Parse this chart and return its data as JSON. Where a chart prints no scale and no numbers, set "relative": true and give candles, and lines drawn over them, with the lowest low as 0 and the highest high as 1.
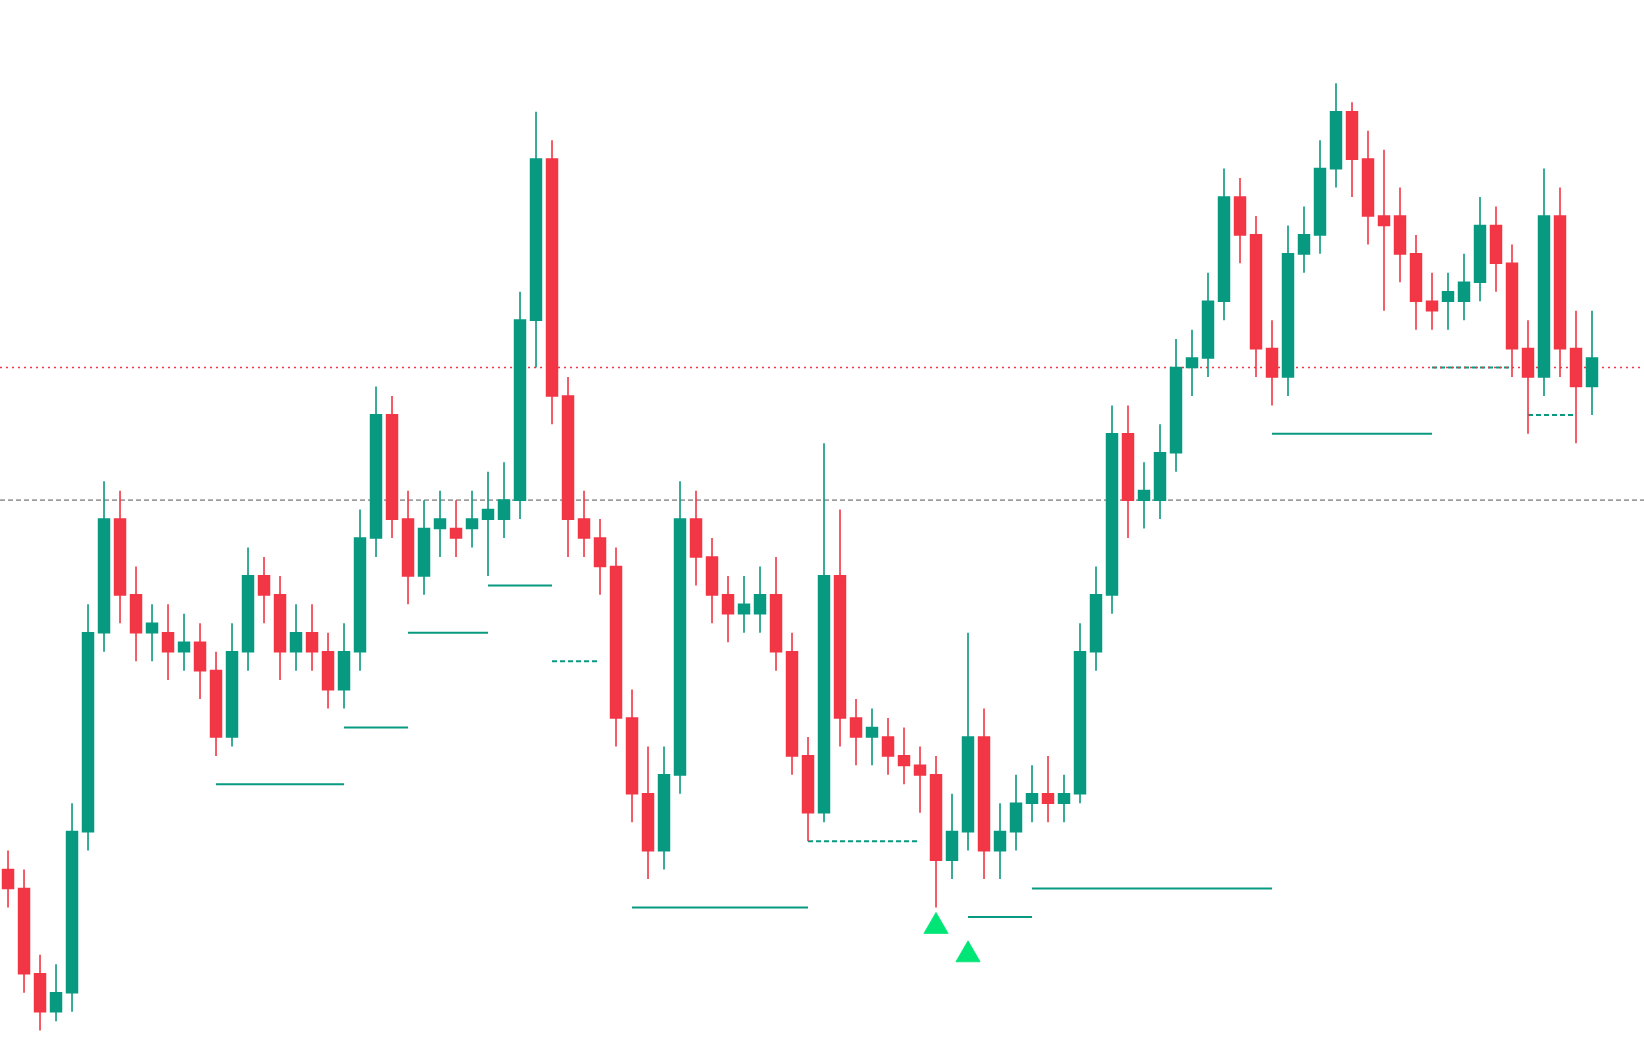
{
  "chart_data": {
    "type": "candlestick",
    "relative": true,
    "colors": [
      "#f23645",
      "#f23645",
      "#f23645",
      "#089981",
      "#089981",
      "#089981",
      "#089981",
      "#f23645",
      "#f23645",
      "#089981",
      "#f23645",
      "#089981",
      "#f23645",
      "#f23645",
      "#089981",
      "#089981",
      "#f23645",
      "#f23645",
      "#089981",
      "#f23645",
      "#f23645",
      "#089981",
      "#089981",
      "#089981",
      "#f23645",
      "#f23645",
      "#089981",
      "#089981",
      "#f23645",
      "#089981",
      "#089981",
      "#089981",
      "#089981",
      "#089981",
      "#f23645",
      "#f23645",
      "#f23645",
      "#f23645",
      "#f23645",
      "#f23645",
      "#f23645",
      "#089981",
      "#089981",
      "#f23645",
      "#f23645",
      "#f23645",
      "#089981",
      "#089981",
      "#f23645",
      "#f23645",
      "#f23645",
      "#089981",
      "#f23645",
      "#f23645",
      "#089981",
      "#f23645",
      "#f23645",
      "#f23645",
      "#f23645",
      "#089981",
      "#089981",
      "#f23645",
      "#089981",
      "#089981",
      "#089981",
      "#f23645",
      "#089981",
      "#089981",
      "#089981",
      "#089981",
      "#f23645",
      "#089981",
      "#089981",
      "#089981",
      "#089981",
      "#089981",
      "#089981",
      "#f23645",
      "#f23645",
      "#f23645",
      "#089981",
      "#089981",
      "#089981",
      "#089981",
      "#f23645",
      "#f23645",
      "#f23645",
      "#f23645",
      "#f23645",
      "#f23645",
      "#089981",
      "#089981",
      "#089981",
      "#f23645",
      "#f23645",
      "#f23645",
      "#089981",
      "#f23645",
      "#f23645",
      "#089981"
    ],
    "categories": [
      null,
      null,
      null,
      null,
      null,
      null,
      null,
      null,
      null,
      null,
      null,
      null,
      null,
      null,
      null,
      null,
      null,
      null,
      null,
      null,
      null,
      null,
      null,
      null,
      null,
      null,
      null,
      null,
      null,
      null,
      null,
      null,
      null,
      null,
      null,
      null,
      null,
      null,
      null,
      null,
      null,
      null,
      null,
      null,
      null,
      null,
      null,
      null,
      null,
      null,
      null,
      null,
      null,
      null,
      null,
      null,
      null,
      null,
      null,
      null,
      null,
      null,
      null,
      null,
      null,
      null,
      null,
      null,
      null,
      null,
      null,
      null,
      null,
      null,
      null,
      null,
      null,
      null,
      null,
      null,
      null,
      null,
      null,
      null,
      null,
      null,
      null,
      null,
      null,
      null,
      null,
      null,
      null,
      null,
      null,
      null,
      null,
      null,
      null,
      null
    ],
    "ohlc": [
      [
        0.17,
        0.19,
        0.13,
        0.15
      ],
      [
        0.15,
        0.17,
        0.04,
        0.06
      ],
      [
        0.06,
        0.08,
        0.0,
        0.02
      ],
      [
        0.02,
        0.07,
        0.01,
        0.04
      ],
      [
        0.04,
        0.24,
        0.02,
        0.21
      ],
      [
        0.21,
        0.45,
        0.19,
        0.42
      ],
      [
        0.42,
        0.58,
        0.4,
        0.54
      ],
      [
        0.54,
        0.57,
        0.43,
        0.46
      ],
      [
        0.46,
        0.49,
        0.39,
        0.42
      ],
      [
        0.42,
        0.45,
        0.39,
        0.43
      ],
      [
        0.42,
        0.45,
        0.37,
        0.4
      ],
      [
        0.4,
        0.44,
        0.38,
        0.41
      ],
      [
        0.41,
        0.43,
        0.35,
        0.38
      ],
      [
        0.38,
        0.4,
        0.29,
        0.31
      ],
      [
        0.31,
        0.43,
        0.3,
        0.4
      ],
      [
        0.4,
        0.51,
        0.38,
        0.48
      ],
      [
        0.48,
        0.5,
        0.43,
        0.46
      ],
      [
        0.46,
        0.48,
        0.37,
        0.4
      ],
      [
        0.4,
        0.45,
        0.38,
        0.42
      ],
      [
        0.42,
        0.45,
        0.38,
        0.4
      ],
      [
        0.4,
        0.42,
        0.34,
        0.36
      ],
      [
        0.36,
        0.43,
        0.34,
        0.4
      ],
      [
        0.4,
        0.55,
        0.38,
        0.52
      ],
      [
        0.52,
        0.68,
        0.5,
        0.65
      ],
      [
        0.65,
        0.67,
        0.52,
        0.54
      ],
      [
        0.54,
        0.57,
        0.45,
        0.48
      ],
      [
        0.48,
        0.56,
        0.46,
        0.53
      ],
      [
        0.53,
        0.57,
        0.5,
        0.54
      ],
      [
        0.53,
        0.56,
        0.5,
        0.52
      ],
      [
        0.53,
        0.57,
        0.51,
        0.54
      ],
      [
        0.54,
        0.59,
        0.48,
        0.55
      ],
      [
        0.54,
        0.6,
        0.52,
        0.56
      ],
      [
        0.56,
        0.78,
        0.54,
        0.75
      ],
      [
        0.75,
        0.97,
        0.7,
        0.92
      ],
      [
        0.92,
        0.94,
        0.64,
        0.67
      ],
      [
        0.67,
        0.69,
        0.5,
        0.54
      ],
      [
        0.54,
        0.57,
        0.5,
        0.52
      ],
      [
        0.52,
        0.54,
        0.46,
        0.49
      ],
      [
        0.49,
        0.51,
        0.3,
        0.33
      ],
      [
        0.33,
        0.36,
        0.22,
        0.25
      ],
      [
        0.25,
        0.3,
        0.16,
        0.19
      ],
      [
        0.19,
        0.3,
        0.17,
        0.27
      ],
      [
        0.27,
        0.58,
        0.25,
        0.54
      ],
      [
        0.54,
        0.57,
        0.47,
        0.5
      ],
      [
        0.5,
        0.52,
        0.43,
        0.46
      ],
      [
        0.46,
        0.48,
        0.41,
        0.44
      ],
      [
        0.44,
        0.48,
        0.42,
        0.45
      ],
      [
        0.44,
        0.49,
        0.42,
        0.46
      ],
      [
        0.46,
        0.5,
        0.38,
        0.4
      ],
      [
        0.4,
        0.42,
        0.27,
        0.29
      ],
      [
        0.29,
        0.31,
        0.2,
        0.23
      ],
      [
        0.23,
        0.62,
        0.22,
        0.48
      ],
      [
        0.48,
        0.55,
        0.3,
        0.33
      ],
      [
        0.33,
        0.35,
        0.28,
        0.31
      ],
      [
        0.31,
        0.34,
        0.28,
        0.32
      ],
      [
        0.31,
        0.33,
        0.27,
        0.29
      ],
      [
        0.29,
        0.32,
        0.26,
        0.28
      ],
      [
        0.28,
        0.3,
        0.23,
        0.27
      ],
      [
        0.27,
        0.29,
        0.13,
        0.18
      ],
      [
        0.18,
        0.25,
        0.16,
        0.21
      ],
      [
        0.21,
        0.42,
        0.19,
        0.31
      ],
      [
        0.31,
        0.34,
        0.16,
        0.19
      ],
      [
        0.19,
        0.24,
        0.16,
        0.21
      ],
      [
        0.21,
        0.27,
        0.19,
        0.24
      ],
      [
        0.24,
        0.28,
        0.22,
        0.25
      ],
      [
        0.25,
        0.29,
        0.22,
        0.24
      ],
      [
        0.24,
        0.27,
        0.22,
        0.25
      ],
      [
        0.25,
        0.43,
        0.24,
        0.4
      ],
      [
        0.4,
        0.49,
        0.38,
        0.46
      ],
      [
        0.46,
        0.66,
        0.44,
        0.63
      ],
      [
        0.63,
        0.66,
        0.52,
        0.56
      ],
      [
        0.56,
        0.6,
        0.53,
        0.57
      ],
      [
        0.56,
        0.64,
        0.54,
        0.61
      ],
      [
        0.61,
        0.73,
        0.59,
        0.7
      ],
      [
        0.7,
        0.74,
        0.67,
        0.71
      ],
      [
        0.71,
        0.8,
        0.69,
        0.77
      ],
      [
        0.77,
        0.91,
        0.75,
        0.88
      ],
      [
        0.88,
        0.9,
        0.81,
        0.84
      ],
      [
        0.84,
        0.86,
        0.69,
        0.72
      ],
      [
        0.72,
        0.75,
        0.66,
        0.69
      ],
      [
        0.69,
        0.85,
        0.67,
        0.82
      ],
      [
        0.82,
        0.87,
        0.8,
        0.84
      ],
      [
        0.84,
        0.94,
        0.82,
        0.91
      ],
      [
        0.91,
        1.0,
        0.89,
        0.97
      ],
      [
        0.97,
        0.98,
        0.88,
        0.92
      ],
      [
        0.92,
        0.95,
        0.83,
        0.86
      ],
      [
        0.86,
        0.93,
        0.76,
        0.85
      ],
      [
        0.86,
        0.89,
        0.79,
        0.82
      ],
      [
        0.82,
        0.84,
        0.74,
        0.77
      ],
      [
        0.77,
        0.8,
        0.74,
        0.76
      ],
      [
        0.77,
        0.8,
        0.74,
        0.78
      ],
      [
        0.77,
        0.82,
        0.75,
        0.79
      ],
      [
        0.79,
        0.88,
        0.77,
        0.85
      ],
      [
        0.85,
        0.87,
        0.78,
        0.81
      ],
      [
        0.81,
        0.83,
        0.69,
        0.72
      ],
      [
        0.72,
        0.75,
        0.63,
        0.69
      ],
      [
        0.69,
        0.91,
        0.67,
        0.86
      ],
      [
        0.86,
        0.89,
        0.69,
        0.72
      ],
      [
        0.72,
        0.76,
        0.62,
        0.68
      ],
      [
        0.68,
        0.76,
        0.65,
        0.71
      ]
    ],
    "series": [
      {
        "type": "line",
        "color": "#089981",
        "line_style": "solid",
        "values": [
          null,
          null,
          null,
          null,
          null,
          null,
          null,
          null,
          null,
          null,
          null,
          null,
          null,
          0.26,
          0.26,
          0.26,
          0.26,
          0.26,
          0.26,
          0.26,
          0.26,
          0.26,
          null,
          null,
          null,
          null,
          null,
          null,
          null,
          null,
          null,
          null,
          null,
          null,
          null,
          null,
          null,
          null,
          null,
          null,
          null,
          null,
          null,
          null,
          null,
          null,
          null,
          null,
          null,
          null,
          null,
          null,
          null,
          null,
          null,
          null,
          null,
          null,
          null,
          null,
          null,
          null,
          null,
          null,
          null,
          null,
          null,
          null,
          null,
          null,
          null,
          null,
          null,
          null,
          null,
          null,
          null,
          null,
          null,
          null,
          null,
          null,
          null,
          null,
          null,
          null,
          null,
          null,
          null,
          null,
          null,
          null,
          null,
          null,
          null,
          null,
          null,
          null,
          null,
          null
        ]
      },
      {
        "type": "line",
        "color": "#089981",
        "line_style": "solid",
        "values": [
          null,
          null,
          null,
          null,
          null,
          null,
          null,
          null,
          null,
          null,
          null,
          null,
          null,
          null,
          null,
          null,
          null,
          null,
          null,
          null,
          null,
          0.32,
          0.32,
          0.32,
          0.32,
          0.32,
          null,
          null,
          null,
          null,
          null,
          null,
          null,
          null,
          null,
          null,
          null,
          null,
          null,
          null,
          null,
          null,
          null,
          null,
          null,
          null,
          null,
          null,
          null,
          null,
          null,
          null,
          null,
          null,
          null,
          null,
          null,
          null,
          null,
          null,
          null,
          null,
          null,
          null,
          null,
          null,
          null,
          null,
          null,
          null,
          null,
          null,
          null,
          null,
          null,
          null,
          null,
          null,
          null,
          null,
          null,
          null,
          null,
          null,
          null,
          null,
          null,
          null,
          null,
          null,
          null,
          null,
          null,
          null,
          null,
          null,
          null,
          null,
          null,
          null
        ]
      },
      {
        "type": "line",
        "color": "#089981",
        "line_style": "solid",
        "values": [
          null,
          null,
          null,
          null,
          null,
          null,
          null,
          null,
          null,
          null,
          null,
          null,
          null,
          null,
          null,
          null,
          null,
          null,
          null,
          null,
          null,
          null,
          null,
          null,
          null,
          0.42,
          0.42,
          0.42,
          0.42,
          0.42,
          0.42,
          null,
          null,
          null,
          null,
          null,
          null,
          null,
          null,
          null,
          null,
          null,
          null,
          null,
          null,
          null,
          null,
          null,
          null,
          null,
          null,
          null,
          null,
          null,
          null,
          null,
          null,
          null,
          null,
          null,
          null,
          null,
          null,
          null,
          null,
          null,
          null,
          null,
          null,
          null,
          null,
          null,
          null,
          null,
          null,
          null,
          null,
          null,
          null,
          null,
          null,
          null,
          null,
          null,
          null,
          null,
          null,
          null,
          null,
          null,
          null,
          null,
          null,
          null,
          null,
          null,
          null,
          null,
          null,
          null
        ]
      },
      {
        "type": "line",
        "color": "#089981",
        "line_style": "solid",
        "values": [
          null,
          null,
          null,
          null,
          null,
          null,
          null,
          null,
          null,
          null,
          null,
          null,
          null,
          null,
          null,
          null,
          null,
          null,
          null,
          null,
          null,
          null,
          null,
          null,
          null,
          null,
          null,
          null,
          null,
          null,
          0.47,
          0.47,
          0.47,
          0.47,
          0.47,
          null,
          null,
          null,
          null,
          null,
          null,
          null,
          null,
          null,
          null,
          null,
          null,
          null,
          null,
          null,
          null,
          null,
          null,
          null,
          null,
          null,
          null,
          null,
          null,
          null,
          null,
          null,
          null,
          null,
          null,
          null,
          null,
          null,
          null,
          null,
          null,
          null,
          null,
          null,
          null,
          null,
          null,
          null,
          null,
          null,
          null,
          null,
          null,
          null,
          null,
          null,
          null,
          null,
          null,
          null,
          null,
          null,
          null,
          null,
          null,
          null,
          null,
          null,
          null,
          null
        ]
      },
      {
        "type": "line",
        "color": "#089981",
        "line_style": "dashed",
        "values": [
          null,
          null,
          null,
          null,
          null,
          null,
          null,
          null,
          null,
          null,
          null,
          null,
          null,
          null,
          null,
          null,
          null,
          null,
          null,
          null,
          null,
          null,
          null,
          null,
          null,
          null,
          null,
          null,
          null,
          null,
          null,
          null,
          null,
          null,
          0.39,
          0.39,
          0.39,
          0.39,
          null,
          null,
          null,
          null,
          null,
          null,
          null,
          null,
          null,
          null,
          null,
          null,
          null,
          null,
          null,
          null,
          null,
          null,
          null,
          null,
          null,
          null,
          null,
          null,
          null,
          null,
          null,
          null,
          null,
          null,
          null,
          null,
          null,
          null,
          null,
          null,
          null,
          null,
          null,
          null,
          null,
          null,
          null,
          null,
          null,
          null,
          null,
          null,
          null,
          null,
          null,
          null,
          null,
          null,
          null,
          null,
          null,
          null,
          null,
          null,
          null,
          null
        ]
      },
      {
        "type": "line",
        "color": "#089981",
        "line_style": "solid",
        "values": [
          null,
          null,
          null,
          null,
          null,
          null,
          null,
          null,
          null,
          null,
          null,
          null,
          null,
          null,
          null,
          null,
          null,
          null,
          null,
          null,
          null,
          null,
          null,
          null,
          null,
          null,
          null,
          null,
          null,
          null,
          null,
          null,
          null,
          null,
          null,
          null,
          null,
          null,
          null,
          0.13,
          0.13,
          0.13,
          0.13,
          0.13,
          0.13,
          0.13,
          0.13,
          0.13,
          0.13,
          0.13,
          0.13,
          null,
          null,
          null,
          null,
          null,
          null,
          null,
          null,
          null,
          null,
          null,
          null,
          null,
          null,
          null,
          null,
          null,
          null,
          null,
          null,
          null,
          null,
          null,
          null,
          null,
          null,
          null,
          null,
          null,
          null,
          null,
          null,
          null,
          null,
          null,
          null,
          null,
          null,
          null,
          null,
          null,
          null,
          null,
          null,
          null,
          null,
          null,
          null,
          null
        ]
      },
      {
        "type": "line",
        "color": "#089981",
        "line_style": "dashed",
        "values": [
          null,
          null,
          null,
          null,
          null,
          null,
          null,
          null,
          null,
          null,
          null,
          null,
          null,
          null,
          null,
          null,
          null,
          null,
          null,
          null,
          null,
          null,
          null,
          null,
          null,
          null,
          null,
          null,
          null,
          null,
          null,
          null,
          null,
          null,
          null,
          null,
          null,
          null,
          null,
          null,
          null,
          null,
          null,
          null,
          null,
          null,
          null,
          null,
          null,
          null,
          0.2,
          0.2,
          0.2,
          0.2,
          0.2,
          0.2,
          0.2,
          0.2,
          null,
          null,
          null,
          null,
          null,
          null,
          null,
          null,
          null,
          null,
          null,
          null,
          null,
          null,
          null,
          null,
          null,
          null,
          null,
          null,
          null,
          null,
          null,
          null,
          null,
          null,
          null,
          null,
          null,
          null,
          null,
          null,
          null,
          null,
          null,
          null,
          null,
          null,
          null,
          null,
          null,
          null
        ]
      },
      {
        "type": "line",
        "color": "#089981",
        "line_style": "solid",
        "values": [
          null,
          null,
          null,
          null,
          null,
          null,
          null,
          null,
          null,
          null,
          null,
          null,
          null,
          null,
          null,
          null,
          null,
          null,
          null,
          null,
          null,
          null,
          null,
          null,
          null,
          null,
          null,
          null,
          null,
          null,
          null,
          null,
          null,
          null,
          null,
          null,
          null,
          null,
          null,
          null,
          null,
          null,
          null,
          null,
          null,
          null,
          null,
          null,
          null,
          null,
          null,
          null,
          null,
          null,
          null,
          null,
          null,
          null,
          null,
          null,
          0.12,
          0.12,
          0.12,
          0.12,
          0.12,
          null,
          null,
          null,
          null,
          null,
          null,
          null,
          null,
          null,
          null,
          null,
          null,
          null,
          null,
          null,
          null,
          null,
          null,
          null,
          null,
          null,
          null,
          null,
          null,
          null,
          null,
          null,
          null,
          null,
          null,
          null,
          null,
          null,
          null,
          null
        ]
      },
      {
        "type": "line",
        "color": "#089981",
        "line_style": "solid",
        "values": [
          null,
          null,
          null,
          null,
          null,
          null,
          null,
          null,
          null,
          null,
          null,
          null,
          null,
          null,
          null,
          null,
          null,
          null,
          null,
          null,
          null,
          null,
          null,
          null,
          null,
          null,
          null,
          null,
          null,
          null,
          null,
          null,
          null,
          null,
          null,
          null,
          null,
          null,
          null,
          null,
          null,
          null,
          null,
          null,
          null,
          null,
          null,
          null,
          null,
          null,
          null,
          null,
          null,
          null,
          null,
          null,
          null,
          null,
          null,
          null,
          null,
          null,
          null,
          null,
          0.15,
          0.15,
          0.15,
          0.15,
          0.15,
          0.15,
          0.15,
          0.15,
          0.15,
          0.15,
          0.15,
          0.15,
          0.15,
          0.15,
          0.15,
          0.15,
          null,
          null,
          null,
          null,
          null,
          null,
          null,
          null,
          null,
          null,
          null,
          null,
          null,
          null,
          null,
          null,
          null,
          null,
          null,
          null
        ]
      },
      {
        "type": "line",
        "color": "#089981",
        "line_style": "solid",
        "values": [
          null,
          null,
          null,
          null,
          null,
          null,
          null,
          null,
          null,
          null,
          null,
          null,
          null,
          null,
          null,
          null,
          null,
          null,
          null,
          null,
          null,
          null,
          null,
          null,
          null,
          null,
          null,
          null,
          null,
          null,
          null,
          null,
          null,
          null,
          null,
          null,
          null,
          null,
          null,
          null,
          null,
          null,
          null,
          null,
          null,
          null,
          null,
          null,
          null,
          null,
          null,
          null,
          null,
          null,
          null,
          null,
          null,
          null,
          null,
          null,
          null,
          null,
          null,
          null,
          null,
          null,
          null,
          null,
          null,
          null,
          null,
          null,
          null,
          null,
          null,
          null,
          null,
          null,
          null,
          0.63,
          0.63,
          0.63,
          0.63,
          0.63,
          0.63,
          0.63,
          0.63,
          0.63,
          0.63,
          0.63,
          null,
          null,
          null,
          null,
          null,
          null,
          null,
          null,
          null,
          null
        ]
      },
      {
        "type": "line",
        "color": "#089981",
        "line_style": "dashed",
        "values": [
          null,
          null,
          null,
          null,
          null,
          null,
          null,
          null,
          null,
          null,
          null,
          null,
          null,
          null,
          null,
          null,
          null,
          null,
          null,
          null,
          null,
          null,
          null,
          null,
          null,
          null,
          null,
          null,
          null,
          null,
          null,
          null,
          null,
          null,
          null,
          null,
          null,
          null,
          null,
          null,
          null,
          null,
          null,
          null,
          null,
          null,
          null,
          null,
          null,
          null,
          null,
          null,
          null,
          null,
          null,
          null,
          null,
          null,
          null,
          null,
          null,
          null,
          null,
          null,
          null,
          null,
          null,
          null,
          null,
          null,
          null,
          null,
          null,
          null,
          null,
          null,
          null,
          null,
          null,
          null,
          null,
          null,
          null,
          null,
          null,
          null,
          null,
          null,
          null,
          0.7,
          0.7,
          0.7,
          0.7,
          0.7,
          0.7,
          null,
          null,
          null,
          null,
          null
        ]
      },
      {
        "type": "line",
        "color": "#089981",
        "line_style": "dashed",
        "values": [
          null,
          null,
          null,
          null,
          null,
          null,
          null,
          null,
          null,
          null,
          null,
          null,
          null,
          null,
          null,
          null,
          null,
          null,
          null,
          null,
          null,
          null,
          null,
          null,
          null,
          null,
          null,
          null,
          null,
          null,
          null,
          null,
          null,
          null,
          null,
          null,
          null,
          null,
          null,
          null,
          null,
          null,
          null,
          null,
          null,
          null,
          null,
          null,
          null,
          null,
          null,
          null,
          null,
          null,
          null,
          null,
          null,
          null,
          null,
          null,
          null,
          null,
          null,
          null,
          null,
          null,
          null,
          null,
          null,
          null,
          null,
          null,
          null,
          null,
          null,
          null,
          null,
          null,
          null,
          null,
          null,
          null,
          null,
          null,
          null,
          null,
          null,
          null,
          null,
          null,
          null,
          null,
          null,
          null,
          null,
          0.65,
          0.65,
          0.65,
          0.65,
          null
        ]
      },
      {
        "type": "scatter",
        "marker": "triangle",
        "color": "#00e676",
        "values": [
          null,
          null,
          null,
          null,
          null,
          null,
          null,
          null,
          null,
          null,
          null,
          null,
          null,
          null,
          null,
          null,
          null,
          null,
          null,
          null,
          null,
          null,
          null,
          null,
          null,
          null,
          null,
          null,
          null,
          null,
          null,
          null,
          null,
          null,
          null,
          null,
          null,
          null,
          null,
          null,
          null,
          null,
          null,
          null,
          null,
          null,
          null,
          null,
          null,
          null,
          null,
          null,
          null,
          null,
          null,
          null,
          null,
          null,
          0.11,
          null,
          0.08,
          null,
          null,
          null,
          null,
          null,
          null,
          null,
          null,
          null,
          null,
          null,
          null,
          null,
          null,
          null,
          null,
          null,
          null,
          null,
          null,
          null,
          null,
          null,
          null,
          null,
          null,
          null,
          null,
          null,
          null,
          null,
          null,
          null,
          null,
          null,
          null,
          null,
          null,
          null
        ]
      }
    ],
    "ref_lines": [
      {
        "axis": "y",
        "value": 0.7,
        "color": "#f23645",
        "line_style": "dotted"
      },
      {
        "axis": "y",
        "value": 0.56,
        "color": "#9e9e9e",
        "line_style": "dashed"
      }
    ]
  }
}
